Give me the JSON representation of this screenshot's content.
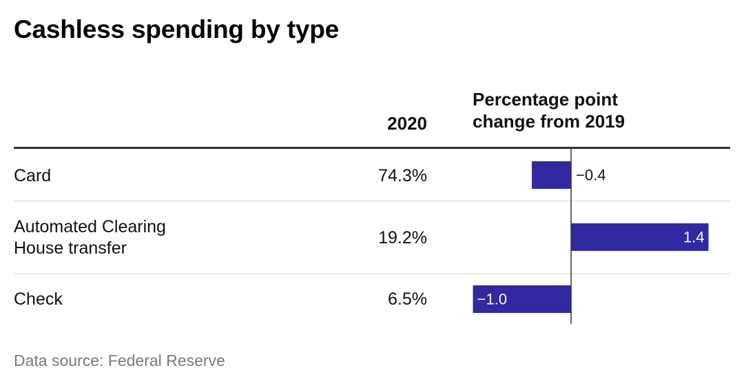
{
  "title": "Cashless spending by type",
  "columns": {
    "year": "2020",
    "change_line1": "Percentage point",
    "change_line2": "change from 2019"
  },
  "colors": {
    "bar": "#3228a0",
    "axis": "#333333",
    "source": "#7a7a7a"
  },
  "rows": [
    {
      "label_lines": [
        "Card"
      ],
      "value": "74.3%",
      "change": -0.4,
      "change_label": "−0.4"
    },
    {
      "label_lines": [
        "Automated Clearing",
        "House transfer"
      ],
      "value": "19.2%",
      "change": 1.4,
      "change_label": "1.4"
    },
    {
      "label_lines": [
        "Check"
      ],
      "value": "6.5%",
      "change": -1.0,
      "change_label": "−1.0"
    }
  ],
  "chart_data": {
    "type": "bar",
    "orientation": "horizontal",
    "categories": [
      "Card",
      "Automated Clearing House transfer",
      "Check"
    ],
    "series": [
      {
        "values": [
          -0.4,
          1.4,
          -1.0
        ]
      }
    ],
    "table_values_2020": [
      "74.3%",
      "19.2%",
      "6.5%"
    ],
    "title": "Cashless spending by type",
    "column_labels": [
      "2020",
      "Percentage point change from 2019"
    ],
    "xlim": [
      -1.0,
      1.4
    ],
    "grid": false,
    "zero_line": true
  },
  "source": "Data source: Federal Reserve"
}
